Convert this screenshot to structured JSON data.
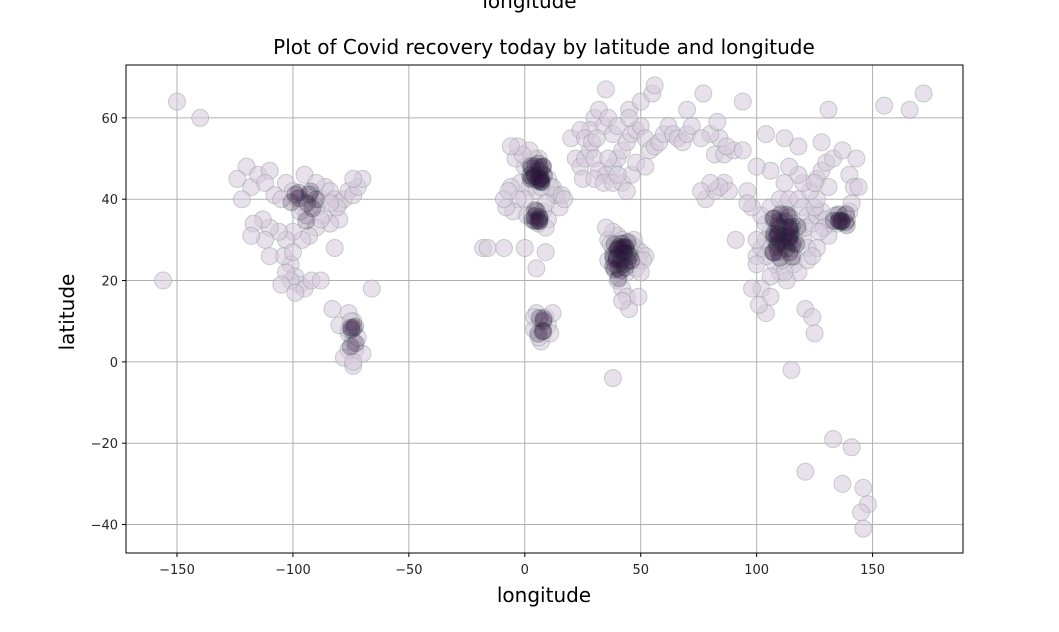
{
  "chart_data": {
    "type": "scatter",
    "top_cutoff_text": "longitude",
    "title": "Plot of Covid recovery today by latitude and longitude",
    "xlabel": "longitude",
    "ylabel": "latitude",
    "xlim": [
      -172,
      189
    ],
    "ylim": [
      -47,
      73
    ],
    "xticks": [
      -150,
      -100,
      -50,
      0,
      50,
      100,
      150
    ],
    "yticks": [
      -40,
      -20,
      0,
      20,
      40,
      60
    ],
    "grid": true,
    "marker_color": "#d5c8da",
    "marker_edge": "#8d9c9c",
    "dense_color": "#2e0e3c",
    "points": [
      [
        -150,
        64
      ],
      [
        -140,
        60
      ],
      [
        -156,
        20
      ],
      [
        -120,
        48
      ],
      [
        -124,
        45
      ],
      [
        -118,
        43
      ],
      [
        -122,
        40
      ],
      [
        -115,
        46
      ],
      [
        -110,
        47
      ],
      [
        -112,
        44
      ],
      [
        -108,
        41
      ],
      [
        -105,
        40
      ],
      [
        -103,
        44
      ],
      [
        -100,
        42
      ],
      [
        -98,
        40
      ],
      [
        -96,
        38
      ],
      [
        -94,
        36
      ],
      [
        -90,
        38
      ],
      [
        -88,
        40
      ],
      [
        -86,
        43
      ],
      [
        -84,
        42
      ],
      [
        -82,
        40
      ],
      [
        -80,
        39
      ],
      [
        -78,
        40
      ],
      [
        -76,
        42
      ],
      [
        -74,
        41
      ],
      [
        -72,
        43
      ],
      [
        -70,
        45
      ],
      [
        -74,
        45
      ],
      [
        -80,
        35
      ],
      [
        -84,
        34
      ],
      [
        -87,
        36
      ],
      [
        -90,
        33
      ],
      [
        -93,
        31
      ],
      [
        -96,
        30
      ],
      [
        -100,
        32
      ],
      [
        -103,
        30
      ],
      [
        -106,
        32
      ],
      [
        -110,
        33
      ],
      [
        -113,
        35
      ],
      [
        -117,
        34
      ],
      [
        -112,
        30
      ],
      [
        -118,
        31
      ],
      [
        -82,
        28
      ],
      [
        -81,
        38
      ],
      [
        -84,
        39
      ],
      [
        -88,
        35
      ],
      [
        -95,
        39
      ],
      [
        -97,
        37
      ],
      [
        -95,
        46
      ],
      [
        -90,
        44
      ],
      [
        -101,
        24
      ],
      [
        -99,
        21
      ],
      [
        -97,
        19
      ],
      [
        -101,
        20
      ],
      [
        -103,
        22
      ],
      [
        -105,
        19
      ],
      [
        -95,
        18
      ],
      [
        -104,
        26
      ],
      [
        -92,
        20
      ],
      [
        -99,
        17
      ],
      [
        -110,
        26
      ],
      [
        -88,
        20
      ],
      [
        -100,
        27
      ],
      [
        -83,
        13
      ],
      [
        -76,
        12
      ],
      [
        -74,
        10
      ],
      [
        -76,
        7
      ],
      [
        -74,
        5
      ],
      [
        -76,
        3
      ],
      [
        -73,
        3
      ],
      [
        -72,
        6
      ],
      [
        -76,
        8
      ],
      [
        -70,
        2
      ],
      [
        -78,
        1
      ],
      [
        -74,
        -1
      ],
      [
        -66,
        18
      ],
      [
        -80,
        9
      ],
      [
        -74,
        0
      ],
      [
        -75,
        10
      ],
      [
        -18,
        28
      ],
      [
        -9,
        28
      ],
      [
        -16,
        28
      ],
      [
        0,
        48
      ],
      [
        2,
        49
      ],
      [
        4,
        47
      ],
      [
        6,
        46
      ],
      [
        -2,
        44
      ],
      [
        3,
        45
      ],
      [
        6,
        50
      ],
      [
        -4,
        50
      ],
      [
        -6,
        43
      ],
      [
        2,
        43
      ],
      [
        8,
        46
      ],
      [
        10,
        45
      ],
      [
        12,
        43
      ],
      [
        14,
        41
      ],
      [
        5,
        42
      ],
      [
        0,
        40
      ],
      [
        -3,
        40
      ],
      [
        -5,
        37
      ],
      [
        -8,
        38
      ],
      [
        -9,
        40
      ],
      [
        -7,
        42
      ],
      [
        4,
        50
      ],
      [
        2,
        52
      ],
      [
        -1,
        51
      ],
      [
        -3,
        53
      ],
      [
        -6,
        53
      ],
      [
        1,
        36
      ],
      [
        3,
        36
      ],
      [
        5,
        36
      ],
      [
        8,
        37
      ],
      [
        10,
        35
      ],
      [
        6,
        34
      ],
      [
        9,
        33
      ],
      [
        15,
        38
      ],
      [
        13,
        41
      ],
      [
        11,
        43
      ],
      [
        16,
        41
      ],
      [
        17,
        40
      ],
      [
        7,
        43
      ],
      [
        9,
        39
      ],
      [
        5,
        23
      ],
      [
        9,
        27
      ],
      [
        0,
        28
      ],
      [
        5,
        12
      ],
      [
        7,
        10
      ],
      [
        9,
        11
      ],
      [
        8,
        7
      ],
      [
        7,
        5
      ],
      [
        4,
        8
      ],
      [
        10,
        9
      ],
      [
        12,
        12
      ],
      [
        4,
        11
      ],
      [
        6,
        6
      ],
      [
        11,
        7
      ],
      [
        20,
        55
      ],
      [
        22,
        50
      ],
      [
        24,
        48
      ],
      [
        26,
        50
      ],
      [
        28,
        52
      ],
      [
        30,
        50
      ],
      [
        32,
        47
      ],
      [
        35,
        46
      ],
      [
        38,
        48
      ],
      [
        40,
        50
      ],
      [
        42,
        52
      ],
      [
        44,
        54
      ],
      [
        46,
        56
      ],
      [
        48,
        57
      ],
      [
        50,
        58
      ],
      [
        52,
        55
      ],
      [
        54,
        52
      ],
      [
        56,
        53
      ],
      [
        58,
        54
      ],
      [
        60,
        56
      ],
      [
        62,
        58
      ],
      [
        64,
        56
      ],
      [
        66,
        55
      ],
      [
        68,
        54
      ],
      [
        70,
        56
      ],
      [
        72,
        58
      ],
      [
        30,
        60
      ],
      [
        32,
        62
      ],
      [
        34,
        58
      ],
      [
        36,
        60
      ],
      [
        38,
        56
      ],
      [
        40,
        58
      ],
      [
        28,
        57
      ],
      [
        24,
        57
      ],
      [
        26,
        55
      ],
      [
        45,
        62
      ],
      [
        50,
        64
      ],
      [
        55,
        66
      ],
      [
        35,
        67
      ],
      [
        56,
        68
      ],
      [
        45,
        60
      ],
      [
        25,
        45
      ],
      [
        30,
        45
      ],
      [
        34,
        44
      ],
      [
        38,
        44
      ],
      [
        42,
        44
      ],
      [
        46,
        46
      ],
      [
        44,
        42
      ],
      [
        48,
        49
      ],
      [
        52,
        48
      ],
      [
        40,
        46
      ],
      [
        36,
        50
      ],
      [
        29,
        54
      ],
      [
        31,
        55
      ],
      [
        36,
        30
      ],
      [
        38,
        28
      ],
      [
        40,
        26
      ],
      [
        42,
        24
      ],
      [
        44,
        22
      ],
      [
        46,
        26
      ],
      [
        48,
        28
      ],
      [
        50,
        27
      ],
      [
        52,
        26
      ],
      [
        40,
        31
      ],
      [
        38,
        32
      ],
      [
        42,
        30
      ],
      [
        44,
        29
      ],
      [
        46,
        24
      ],
      [
        40,
        20
      ],
      [
        42,
        18
      ],
      [
        44,
        16
      ],
      [
        45,
        13
      ],
      [
        42,
        15
      ],
      [
        36,
        25
      ],
      [
        35,
        33
      ],
      [
        37,
        29
      ],
      [
        41,
        29
      ],
      [
        39,
        24
      ],
      [
        43,
        27
      ],
      [
        46,
        29
      ],
      [
        49,
        25
      ],
      [
        51,
        25
      ],
      [
        48,
        23
      ],
      [
        47,
        30
      ],
      [
        49,
        16
      ],
      [
        50,
        22
      ],
      [
        38,
        -4
      ],
      [
        43,
        26
      ],
      [
        45,
        28
      ],
      [
        78,
        40
      ],
      [
        82,
        42
      ],
      [
        86,
        44
      ],
      [
        88,
        42
      ],
      [
        84,
        43
      ],
      [
        80,
        44
      ],
      [
        76,
        42
      ],
      [
        82,
        51
      ],
      [
        86,
        51
      ],
      [
        90,
        52
      ],
      [
        94,
        52
      ],
      [
        84,
        55
      ],
      [
        80,
        56
      ],
      [
        76,
        55
      ],
      [
        70,
        62
      ],
      [
        77,
        66
      ],
      [
        94,
        64
      ],
      [
        83,
        59
      ],
      [
        91,
        30
      ],
      [
        87,
        53
      ],
      [
        100,
        26
      ],
      [
        102,
        28
      ],
      [
        104,
        30
      ],
      [
        106,
        32
      ],
      [
        108,
        34
      ],
      [
        110,
        36
      ],
      [
        112,
        38
      ],
      [
        114,
        36
      ],
      [
        116,
        34
      ],
      [
        118,
        32
      ],
      [
        120,
        30
      ],
      [
        122,
        28
      ],
      [
        110,
        30
      ],
      [
        112,
        28
      ],
      [
        114,
        26
      ],
      [
        116,
        24
      ],
      [
        118,
        22
      ],
      [
        110,
        22
      ],
      [
        108,
        24
      ],
      [
        106,
        28
      ],
      [
        104,
        34
      ],
      [
        102,
        36
      ],
      [
        106,
        38
      ],
      [
        110,
        40
      ],
      [
        114,
        40
      ],
      [
        118,
        40
      ],
      [
        120,
        38
      ],
      [
        122,
        36
      ],
      [
        116,
        30
      ],
      [
        112,
        32
      ],
      [
        108,
        30
      ],
      [
        104,
        26
      ],
      [
        100,
        24
      ],
      [
        98,
        38
      ],
      [
        113,
        20
      ],
      [
        116,
        26
      ],
      [
        112,
        22
      ],
      [
        107,
        27
      ],
      [
        111,
        25
      ],
      [
        115,
        28
      ],
      [
        121,
        33
      ],
      [
        124,
        34
      ],
      [
        126,
        36
      ],
      [
        128,
        37
      ],
      [
        130,
        35
      ],
      [
        132,
        34
      ],
      [
        134,
        36
      ],
      [
        136,
        35
      ],
      [
        138,
        36
      ],
      [
        140,
        37
      ],
      [
        141,
        39
      ],
      [
        139,
        35
      ],
      [
        135,
        34
      ],
      [
        131,
        31
      ],
      [
        129,
        33
      ],
      [
        127,
        32
      ],
      [
        125,
        38
      ],
      [
        126,
        40
      ],
      [
        123,
        42
      ],
      [
        120,
        44
      ],
      [
        118,
        46
      ],
      [
        114,
        48
      ],
      [
        112,
        44
      ],
      [
        106,
        47
      ],
      [
        100,
        48
      ],
      [
        96,
        42
      ],
      [
        126,
        45
      ],
      [
        128,
        47
      ],
      [
        130,
        49
      ],
      [
        133,
        50
      ],
      [
        137,
        52
      ],
      [
        143,
        50
      ],
      [
        140,
        46
      ],
      [
        142,
        43
      ],
      [
        144,
        43
      ],
      [
        131,
        43
      ],
      [
        126,
        28
      ],
      [
        122,
        25
      ],
      [
        121,
        13
      ],
      [
        124,
        11
      ],
      [
        125,
        7
      ],
      [
        104,
        12
      ],
      [
        106,
        21
      ],
      [
        102,
        18
      ],
      [
        106,
        16
      ],
      [
        101,
        14
      ],
      [
        98,
        18
      ],
      [
        100,
        30
      ],
      [
        96,
        39
      ],
      [
        112,
        55
      ],
      [
        118,
        53
      ],
      [
        104,
        56
      ],
      [
        128,
        54
      ],
      [
        131,
        62
      ],
      [
        155,
        63
      ],
      [
        166,
        62
      ],
      [
        172,
        66
      ],
      [
        115,
        -2
      ],
      [
        133,
        -19
      ],
      [
        121,
        -27
      ],
      [
        137,
        -30
      ],
      [
        141,
        -21
      ],
      [
        146,
        -31
      ],
      [
        148,
        -35
      ],
      [
        145,
        -37
      ],
      [
        146,
        -41
      ],
      [
        124,
        26
      ],
      [
        125,
        44
      ]
    ],
    "dense_clusters": [
      {
        "cx": 5,
        "cy": 46,
        "sx": 3.5,
        "sy": 2.8,
        "n": 22
      },
      {
        "cx": 5,
        "cy": 36,
        "sx": 3.5,
        "sy": 1.5,
        "n": 10
      },
      {
        "cx": 42,
        "cy": 25,
        "sx": 4,
        "sy": 4.5,
        "n": 30
      },
      {
        "cx": 112,
        "cy": 31,
        "sx": 6,
        "sy": 5.5,
        "n": 38
      },
      {
        "cx": 136,
        "cy": 35,
        "sx": 3,
        "sy": 1.5,
        "n": 10
      },
      {
        "cx": -95,
        "cy": 38,
        "sx": 6,
        "sy": 4,
        "n": 10
      },
      {
        "cx": -74,
        "cy": 6,
        "sx": 1.8,
        "sy": 3,
        "n": 6
      },
      {
        "cx": 7,
        "cy": 9,
        "sx": 1.8,
        "sy": 2.5,
        "n": 6
      }
    ]
  }
}
